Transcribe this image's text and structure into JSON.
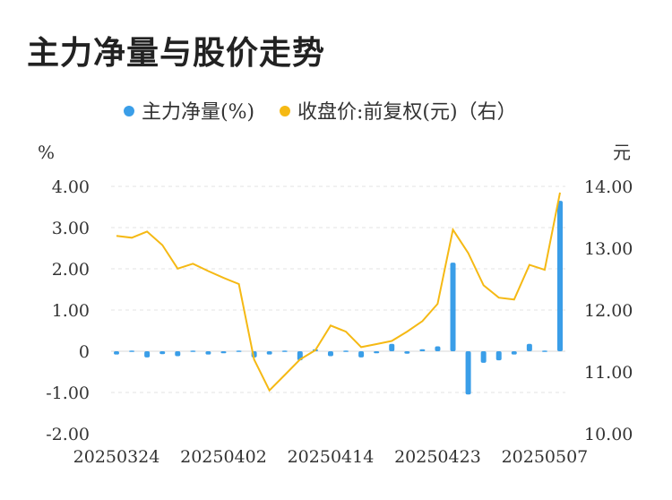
{
  "title": "主力净量与股价走势",
  "legend": {
    "items": [
      {
        "label": "主力净量(%)",
        "color": "#3a9ee8"
      },
      {
        "label": "收盘价:前复权(元)（右）",
        "color": "#f5b914"
      }
    ]
  },
  "chart_data": {
    "type": "bar+line",
    "ylabel_left": "%",
    "ylabel_right": "元",
    "left_ticks": [
      "4.00",
      "3.00",
      "2.00",
      "1.00",
      "0",
      "-1.00",
      "-2.00"
    ],
    "right_ticks": [
      "14.00",
      "13.00",
      "12.00",
      "11.00",
      "10.00"
    ],
    "ylim_left": [
      -2,
      4
    ],
    "ylim_right": [
      10,
      14
    ],
    "x_tick_labels": [
      "20250324",
      "20250402",
      "20250414",
      "20250423",
      "20250507"
    ],
    "x_tick_indices": [
      0,
      7,
      14,
      21,
      28
    ],
    "grid": true,
    "legend_position": "top",
    "series": [
      {
        "name": "主力净量(%)",
        "type": "bar",
        "color": "#3a9ee8",
        "values": [
          -0.08,
          0.0,
          -0.15,
          -0.07,
          -0.12,
          0.0,
          -0.08,
          -0.05,
          -0.03,
          -0.15,
          -0.08,
          -0.03,
          -0.22,
          0.05,
          -0.12,
          0.0,
          -0.15,
          -0.05,
          0.18,
          -0.06,
          0.05,
          0.12,
          2.15,
          -1.05,
          -0.28,
          -0.22,
          -0.08,
          0.18,
          -0.03,
          3.65
        ]
      },
      {
        "name": "收盘价:前复权(元)（右）",
        "type": "line",
        "color": "#f5b914",
        "values": [
          13.2,
          13.17,
          13.27,
          13.05,
          12.67,
          12.75,
          12.63,
          12.52,
          12.42,
          11.2,
          10.7,
          10.95,
          11.2,
          11.35,
          11.75,
          11.65,
          11.4,
          11.45,
          11.5,
          11.65,
          11.82,
          12.1,
          13.3,
          12.92,
          12.4,
          12.2,
          12.17,
          12.73,
          12.65,
          13.9
        ]
      }
    ]
  }
}
